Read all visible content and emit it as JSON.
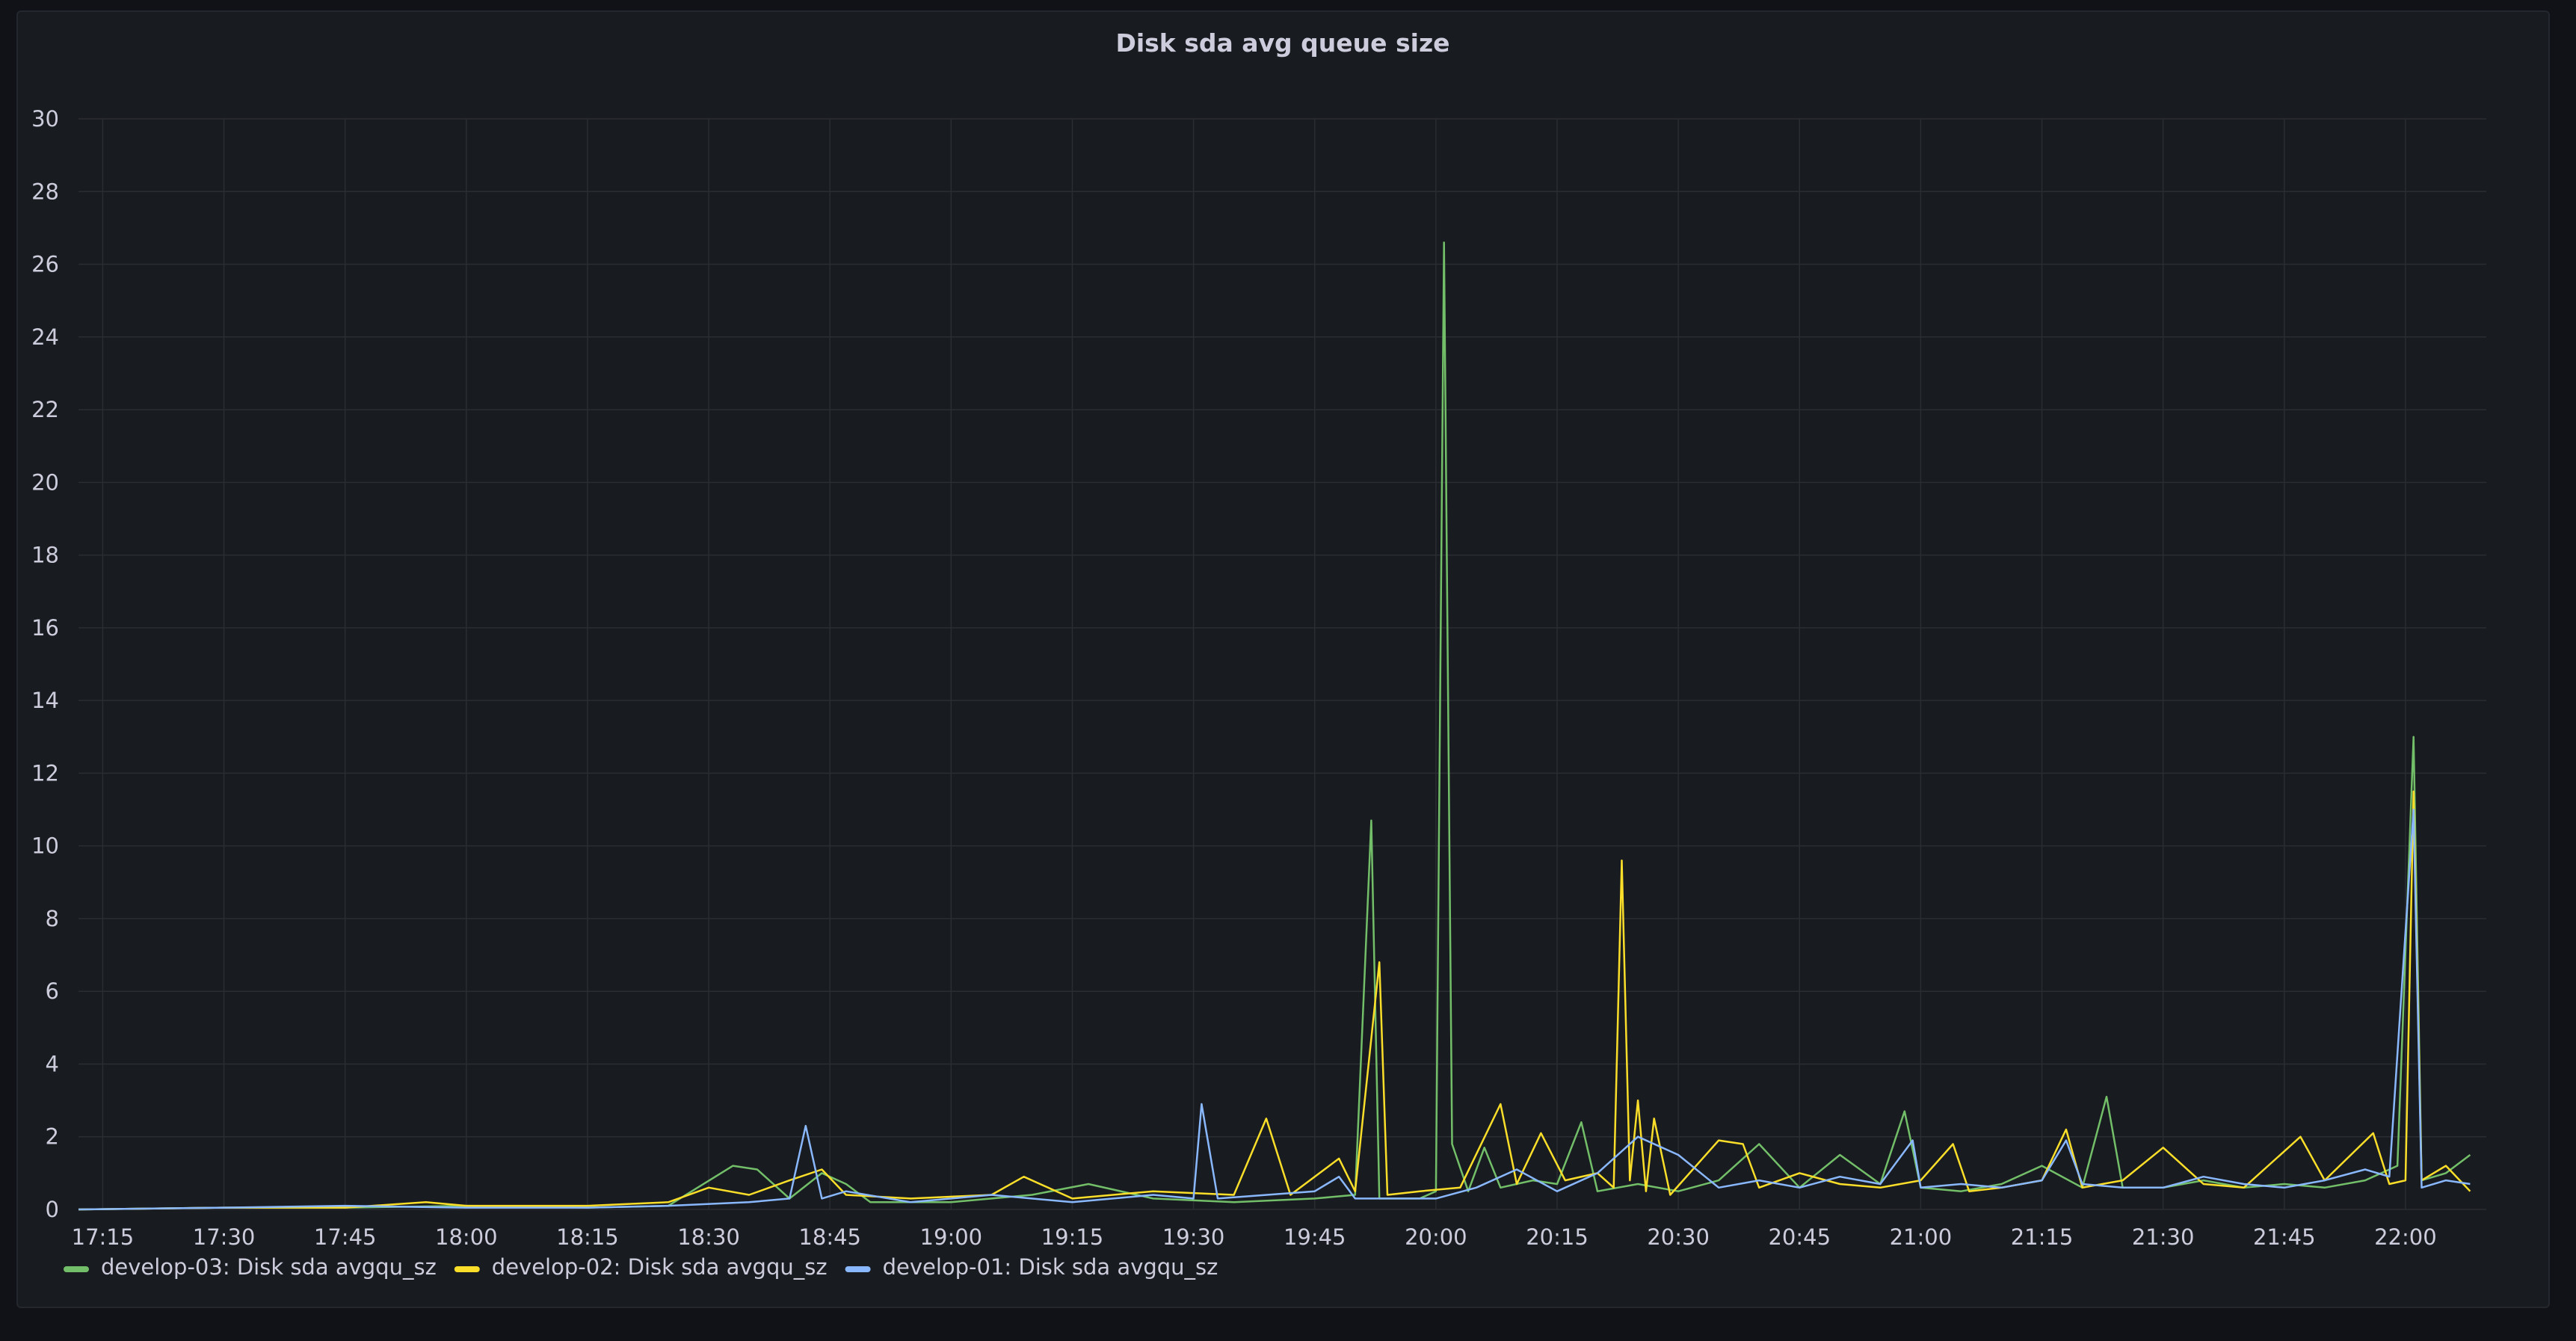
{
  "chart_data": {
    "type": "line",
    "title": "Disk sda avg queue size",
    "xlabel": "",
    "ylabel": "",
    "ylim": [
      0,
      30
    ],
    "yticks": [
      0,
      2,
      4,
      6,
      8,
      10,
      12,
      14,
      16,
      18,
      20,
      22,
      24,
      26,
      28,
      30
    ],
    "xlim": [
      "17:12",
      "22:10"
    ],
    "xticks": [
      "17:15",
      "17:30",
      "17:45",
      "18:00",
      "18:15",
      "18:30",
      "18:45",
      "19:00",
      "19:15",
      "19:30",
      "19:45",
      "20:00",
      "20:15",
      "20:30",
      "20:45",
      "21:00",
      "21:15",
      "21:30",
      "21:45",
      "22:00"
    ],
    "grid": true,
    "legend": "bottom-left",
    "series": [
      {
        "name": "develop-03: Disk sda avgqu_sz",
        "color": "#73bf69",
        "points": [
          [
            "17:12",
            0
          ],
          [
            "17:30",
            0.05
          ],
          [
            "17:45",
            0.05
          ],
          [
            "18:00",
            0.1
          ],
          [
            "18:15",
            0.05
          ],
          [
            "18:25",
            0.1
          ],
          [
            "18:33",
            1.2
          ],
          [
            "18:36",
            1.1
          ],
          [
            "18:40",
            0.3
          ],
          [
            "18:44",
            1.0
          ],
          [
            "18:47",
            0.7
          ],
          [
            "18:50",
            0.2
          ],
          [
            "19:00",
            0.2
          ],
          [
            "19:10",
            0.4
          ],
          [
            "19:17",
            0.7
          ],
          [
            "19:25",
            0.3
          ],
          [
            "19:35",
            0.2
          ],
          [
            "19:45",
            0.3
          ],
          [
            "19:50",
            0.4
          ],
          [
            "19:52",
            10.7
          ],
          [
            "19:53",
            0.3
          ],
          [
            "19:58",
            0.3
          ],
          [
            "20:00",
            0.5
          ],
          [
            "20:01",
            26.6
          ],
          [
            "20:02",
            1.8
          ],
          [
            "20:04",
            0.5
          ],
          [
            "20:06",
            1.7
          ],
          [
            "20:08",
            0.6
          ],
          [
            "20:12",
            0.8
          ],
          [
            "20:15",
            0.7
          ],
          [
            "20:18",
            2.4
          ],
          [
            "20:20",
            0.5
          ],
          [
            "20:25",
            0.7
          ],
          [
            "20:30",
            0.5
          ],
          [
            "20:35",
            0.8
          ],
          [
            "20:40",
            1.8
          ],
          [
            "20:45",
            0.6
          ],
          [
            "20:50",
            1.5
          ],
          [
            "20:55",
            0.7
          ],
          [
            "20:58",
            2.7
          ],
          [
            "21:00",
            0.6
          ],
          [
            "21:05",
            0.5
          ],
          [
            "21:10",
            0.7
          ],
          [
            "21:15",
            1.2
          ],
          [
            "21:20",
            0.6
          ],
          [
            "21:23",
            3.1
          ],
          [
            "21:25",
            0.6
          ],
          [
            "21:30",
            0.6
          ],
          [
            "21:35",
            0.8
          ],
          [
            "21:40",
            0.6
          ],
          [
            "21:45",
            0.7
          ],
          [
            "21:50",
            0.6
          ],
          [
            "21:55",
            0.8
          ],
          [
            "21:59",
            1.2
          ],
          [
            "22:01",
            13.0
          ],
          [
            "22:02",
            0.8
          ],
          [
            "22:05",
            1.0
          ],
          [
            "22:08",
            1.5
          ]
        ]
      },
      {
        "name": "develop-02: Disk sda avgqu_sz",
        "color": "#fade2a",
        "points": [
          [
            "17:12",
            0
          ],
          [
            "17:30",
            0.05
          ],
          [
            "17:45",
            0.05
          ],
          [
            "17:55",
            0.2
          ],
          [
            "18:00",
            0.1
          ],
          [
            "18:15",
            0.1
          ],
          [
            "18:25",
            0.2
          ],
          [
            "18:30",
            0.6
          ],
          [
            "18:35",
            0.4
          ],
          [
            "18:40",
            0.8
          ],
          [
            "18:44",
            1.1
          ],
          [
            "18:47",
            0.4
          ],
          [
            "18:55",
            0.3
          ],
          [
            "19:05",
            0.4
          ],
          [
            "19:09",
            0.9
          ],
          [
            "19:15",
            0.3
          ],
          [
            "19:25",
            0.5
          ],
          [
            "19:35",
            0.4
          ],
          [
            "19:39",
            2.5
          ],
          [
            "19:42",
            0.4
          ],
          [
            "19:48",
            1.4
          ],
          [
            "19:50",
            0.5
          ],
          [
            "19:53",
            6.8
          ],
          [
            "19:54",
            0.4
          ],
          [
            "19:58",
            0.5
          ],
          [
            "20:03",
            0.6
          ],
          [
            "20:08",
            2.9
          ],
          [
            "20:10",
            0.7
          ],
          [
            "20:13",
            2.1
          ],
          [
            "20:16",
            0.8
          ],
          [
            "20:20",
            1.0
          ],
          [
            "20:22",
            0.6
          ],
          [
            "20:23",
            9.6
          ],
          [
            "20:24",
            0.8
          ],
          [
            "20:25",
            3.0
          ],
          [
            "20:26",
            0.5
          ],
          [
            "20:27",
            2.5
          ],
          [
            "20:29",
            0.4
          ],
          [
            "20:35",
            1.9
          ],
          [
            "20:38",
            1.8
          ],
          [
            "20:40",
            0.6
          ],
          [
            "20:45",
            1.0
          ],
          [
            "20:50",
            0.7
          ],
          [
            "20:55",
            0.6
          ],
          [
            "21:00",
            0.8
          ],
          [
            "21:04",
            1.8
          ],
          [
            "21:06",
            0.5
          ],
          [
            "21:10",
            0.6
          ],
          [
            "21:15",
            0.8
          ],
          [
            "21:18",
            2.2
          ],
          [
            "21:20",
            0.6
          ],
          [
            "21:25",
            0.8
          ],
          [
            "21:30",
            1.7
          ],
          [
            "21:35",
            0.7
          ],
          [
            "21:40",
            0.6
          ],
          [
            "21:47",
            2.0
          ],
          [
            "21:50",
            0.8
          ],
          [
            "21:56",
            2.1
          ],
          [
            "21:58",
            0.7
          ],
          [
            "22:00",
            0.8
          ],
          [
            "22:01",
            11.5
          ],
          [
            "22:02",
            0.8
          ],
          [
            "22:05",
            1.2
          ],
          [
            "22:08",
            0.5
          ]
        ]
      },
      {
        "name": "develop-01: Disk sda avgqu_sz",
        "color": "#8ab8ff",
        "points": [
          [
            "17:12",
            0
          ],
          [
            "17:30",
            0.05
          ],
          [
            "17:45",
            0.1
          ],
          [
            "18:00",
            0.05
          ],
          [
            "18:15",
            0.05
          ],
          [
            "18:25",
            0.1
          ],
          [
            "18:35",
            0.2
          ],
          [
            "18:40",
            0.3
          ],
          [
            "18:42",
            2.3
          ],
          [
            "18:44",
            0.3
          ],
          [
            "18:47",
            0.5
          ],
          [
            "18:55",
            0.2
          ],
          [
            "19:05",
            0.4
          ],
          [
            "19:15",
            0.2
          ],
          [
            "19:25",
            0.4
          ],
          [
            "19:30",
            0.3
          ],
          [
            "19:31",
            2.9
          ],
          [
            "19:33",
            0.3
          ],
          [
            "19:45",
            0.5
          ],
          [
            "19:48",
            0.9
          ],
          [
            "19:50",
            0.3
          ],
          [
            "20:00",
            0.3
          ],
          [
            "20:05",
            0.6
          ],
          [
            "20:10",
            1.1
          ],
          [
            "20:15",
            0.5
          ],
          [
            "20:20",
            1.0
          ],
          [
            "20:25",
            2.0
          ],
          [
            "20:30",
            1.5
          ],
          [
            "20:35",
            0.6
          ],
          [
            "20:40",
            0.8
          ],
          [
            "20:45",
            0.6
          ],
          [
            "20:50",
            0.9
          ],
          [
            "20:55",
            0.7
          ],
          [
            "20:59",
            1.9
          ],
          [
            "21:00",
            0.6
          ],
          [
            "21:05",
            0.7
          ],
          [
            "21:10",
            0.6
          ],
          [
            "21:15",
            0.8
          ],
          [
            "21:18",
            1.9
          ],
          [
            "21:20",
            0.7
          ],
          [
            "21:25",
            0.6
          ],
          [
            "21:30",
            0.6
          ],
          [
            "21:35",
            0.9
          ],
          [
            "21:40",
            0.7
          ],
          [
            "21:45",
            0.6
          ],
          [
            "21:50",
            0.8
          ],
          [
            "21:55",
            1.1
          ],
          [
            "21:58",
            0.9
          ],
          [
            "22:01",
            11.0
          ],
          [
            "22:02",
            0.6
          ],
          [
            "22:05",
            0.8
          ],
          [
            "22:08",
            0.7
          ]
        ]
      }
    ]
  }
}
